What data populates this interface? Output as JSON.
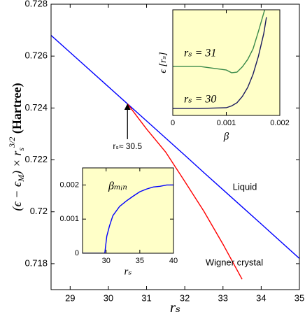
{
  "chart_data": [
    {
      "type": "line",
      "x_label": "rₛ",
      "y_label": [
        "(ϵ − ϵ",
        "M",
        ") × r",
        "s",
        "3/2",
        " (Hartree)"
      ],
      "x": [
        28.5,
        29,
        30,
        30.5,
        31,
        31.5,
        32,
        32.5,
        33,
        33.5,
        34,
        35
      ],
      "series": [
        {
          "name": "Liquid",
          "color": "#0000ff",
          "values": [
            0.7268,
            0.72614,
            0.72482,
            0.72416,
            0.7235,
            0.72284,
            0.72218,
            0.72151,
            0.72085,
            0.72019,
            0.71953,
            0.7182
          ]
        },
        {
          "name": "Wigner crystal",
          "color": "#ff0000",
          "values": [
            null,
            null,
            null,
            0.72416,
            0.72319,
            0.7223,
            0.72117,
            0.72002,
            0.71875,
            0.7174,
            null,
            null
          ]
        }
      ],
      "xlim": [
        28.5,
        35
      ],
      "xticks": [
        29,
        30,
        31,
        32,
        33,
        34,
        35
      ],
      "ylim": [
        0.717,
        0.728
      ],
      "yticks": [
        0.718,
        0.72,
        0.722,
        0.724,
        0.726,
        0.728
      ],
      "annotations": [
        {
          "text": "rₛ≈ 30.5",
          "x": 30.5,
          "y": 0.7242
        }
      ]
    },
    {
      "type": "line",
      "x_label": "β",
      "y_label": "ϵ [rₛ]",
      "x": [
        0,
        0.0005,
        0.001,
        0.0011,
        0.0012,
        0.0013,
        0.0014,
        0.0015,
        0.0016,
        0.0017,
        0.00175
      ],
      "series": [
        {
          "name": "rₛ = 31",
          "color": "#3a8a4a",
          "values": [
            0.464,
            0.464,
            0.43,
            0.404,
            0.41,
            0.46,
            0.53,
            0.63,
            0.795,
            0.97,
            1.06
          ]
        },
        {
          "name": "rₛ = 30",
          "color": "#1a1a5e",
          "values": [
            0.066,
            0.066,
            0.073,
            0.09,
            0.12,
            0.18,
            0.265,
            0.39,
            0.56,
            0.775,
            0.93
          ]
        }
      ],
      "xlim": [
        0,
        0.002
      ],
      "xticks": [
        0,
        0.001,
        0.002
      ],
      "ylim": [
        0,
        1
      ],
      "background": "#ffffc8"
    },
    {
      "type": "line",
      "x_label": "rₛ",
      "x": [
        26.5,
        29.8,
        30.1,
        30.5,
        31,
        32,
        33,
        34,
        35,
        36,
        37,
        38,
        39,
        40
      ],
      "series": [
        {
          "name": "βₘᵢₙ",
          "color": "#0000ff",
          "values": [
            0,
            0,
            0.0005,
            0.0008,
            0.0011,
            0.00137,
            0.00153,
            0.00167,
            0.0018,
            0.00188,
            0.00194,
            0.00196,
            0.002,
            0.002
          ]
        }
      ],
      "xlim": [
        26.5,
        40
      ],
      "xticks": [
        30,
        35,
        40
      ],
      "ylim": [
        0,
        0.0025
      ],
      "yticks": [
        0,
        0.001,
        0.002
      ],
      "background": "#ffffc8"
    }
  ]
}
